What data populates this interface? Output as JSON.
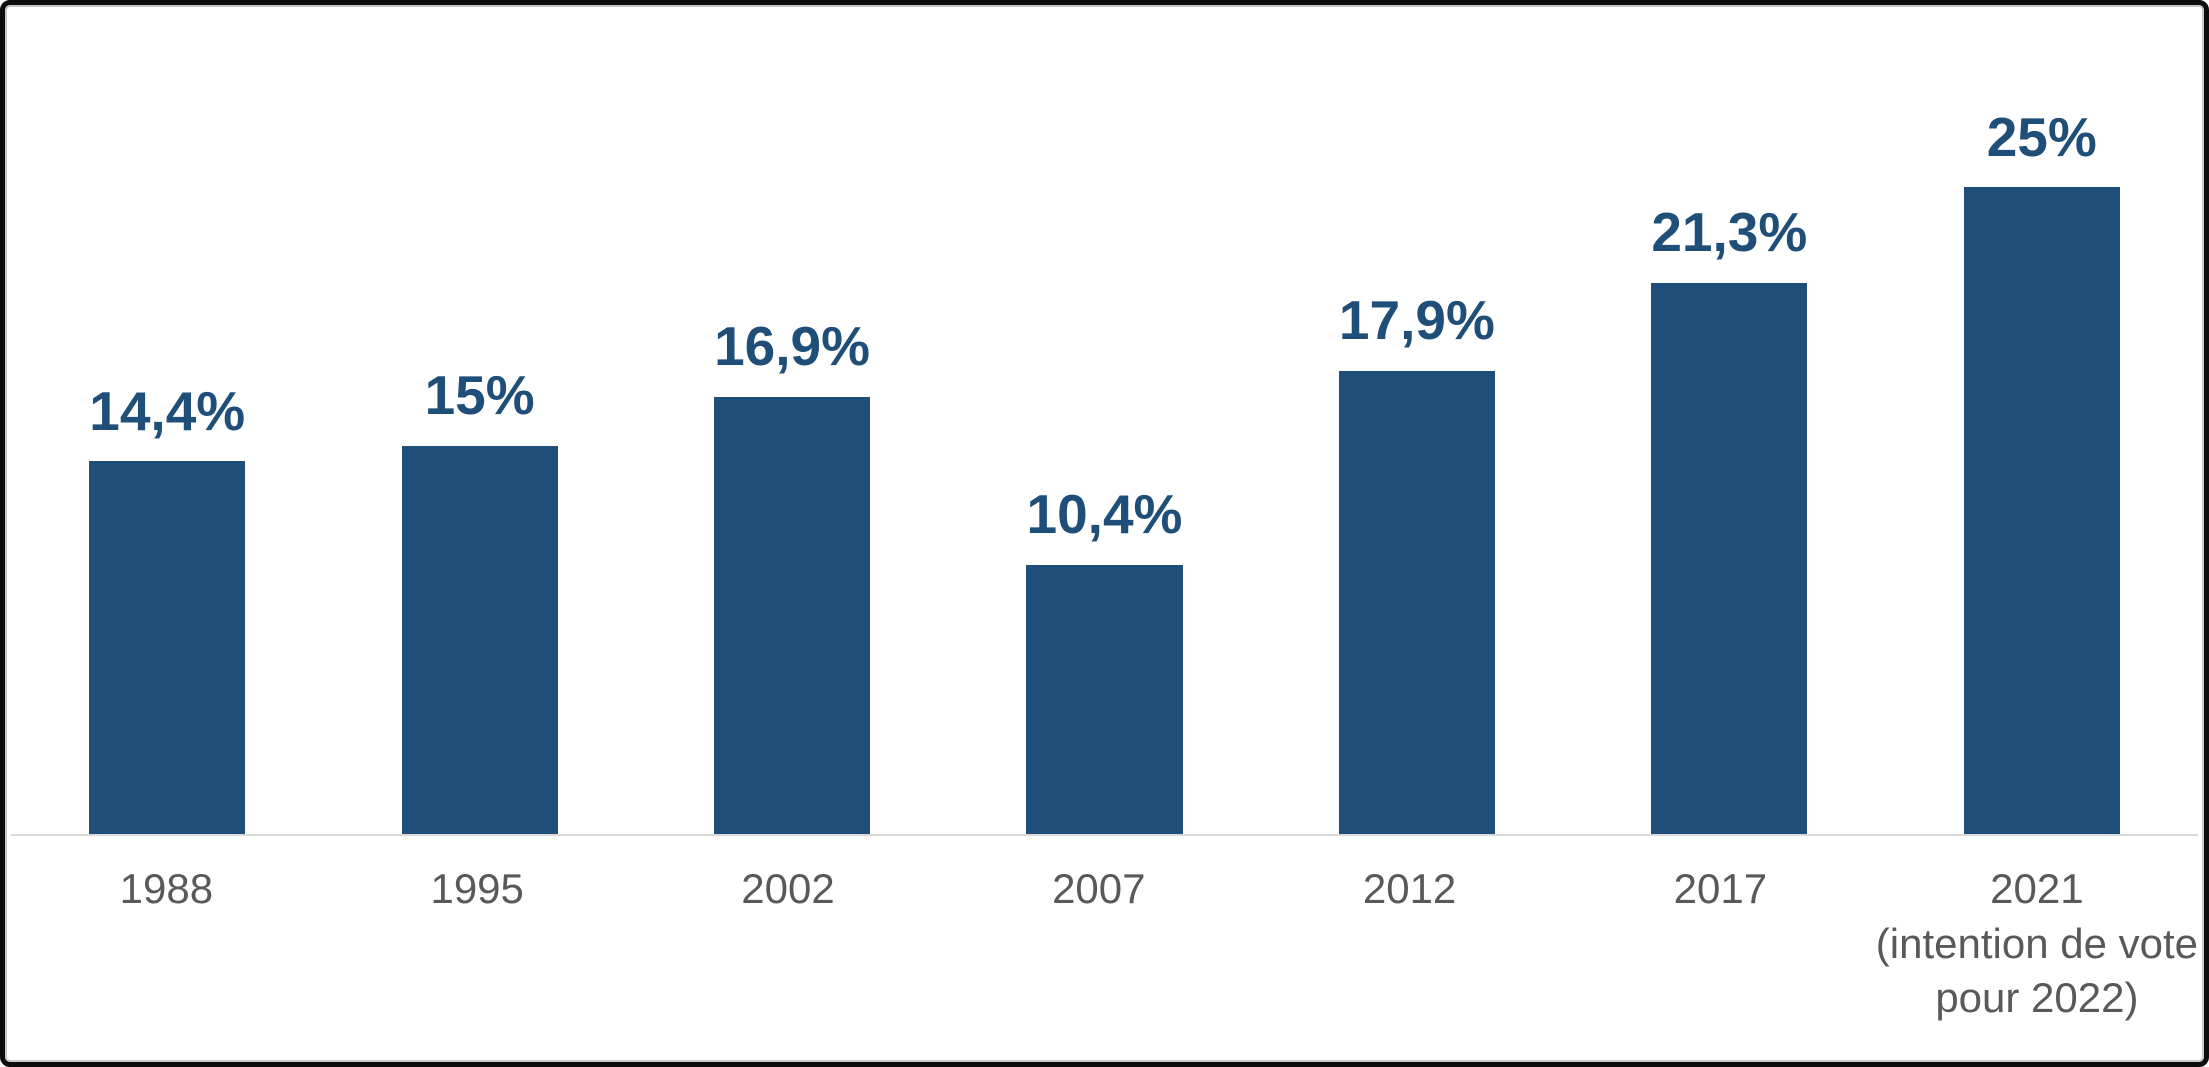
{
  "chart_data": {
    "type": "bar",
    "title": "",
    "xlabel": "",
    "ylabel": "",
    "ylim": [
      0,
      26
    ],
    "grid": false,
    "legend": "none",
    "value_format": "percent, French comma decimal separator",
    "categories": [
      "1988",
      "1995",
      "2002",
      "2007",
      "2012",
      "2017",
      "2021 (intention de vote pour 2022)"
    ],
    "values": [
      14.4,
      15,
      16.9,
      10.4,
      17.9,
      21.3,
      25
    ],
    "value_labels": [
      "14,4%",
      "15%",
      "16,9%",
      "10,4%",
      "17,9%",
      "21,3%",
      "25%"
    ],
    "bars": [
      {
        "year": "1988",
        "value": 14.4,
        "label": "14,4%"
      },
      {
        "year": "1995",
        "value": 15,
        "label": "15%"
      },
      {
        "year": "2002",
        "value": 16.9,
        "label": "16,9%"
      },
      {
        "year": "2007",
        "value": 10.4,
        "label": "10,4%"
      },
      {
        "year": "2012",
        "value": 17.9,
        "label": "17,9%"
      },
      {
        "year": "2017",
        "value": 21.3,
        "label": "21,3%"
      },
      {
        "year": "2021",
        "value": 25,
        "label": "25%",
        "sublabel_line1": "(intention de vote",
        "sublabel_line2": "pour 2022)"
      }
    ],
    "colors": {
      "bar": "#1F4E79",
      "value_label": "#1F4E79",
      "axis_label": "#595959",
      "axis_line": "#D9D9D9",
      "frame_border": "#000000"
    }
  }
}
